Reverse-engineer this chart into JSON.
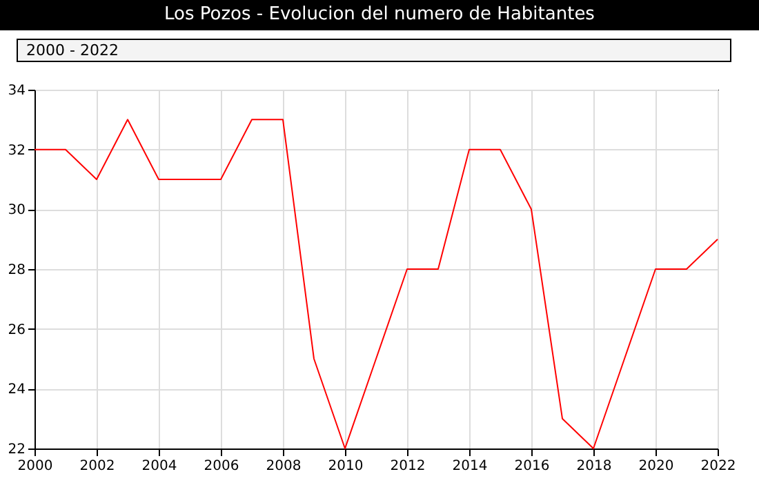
{
  "chart_data": {
    "type": "line",
    "title": "Los Pozos - Evolucion del numero de Habitantes",
    "annotations": [
      "2000 - 2022"
    ],
    "x": [
      2000,
      2001,
      2002,
      2003,
      2004,
      2005,
      2006,
      2007,
      2008,
      2009,
      2010,
      2011,
      2012,
      2013,
      2014,
      2015,
      2016,
      2017,
      2018,
      2019,
      2020,
      2021,
      2022
    ],
    "series": [
      {
        "color": "#ff0000",
        "values": [
          32,
          32,
          31,
          33,
          31,
          31,
          31,
          33,
          33,
          25,
          22,
          25,
          28,
          28,
          32,
          32,
          30,
          23,
          22,
          25,
          28,
          28,
          29
        ]
      }
    ],
    "xlim": [
      2000,
      2022
    ],
    "xticks": [
      2000,
      2002,
      2004,
      2006,
      2008,
      2010,
      2012,
      2014,
      2016,
      2018,
      2020,
      2022
    ],
    "ylim": [
      22,
      34
    ],
    "yticks": [
      22,
      24,
      26,
      28,
      30,
      32,
      34
    ],
    "grid": true,
    "marker": "none",
    "line_style": "solid"
  }
}
